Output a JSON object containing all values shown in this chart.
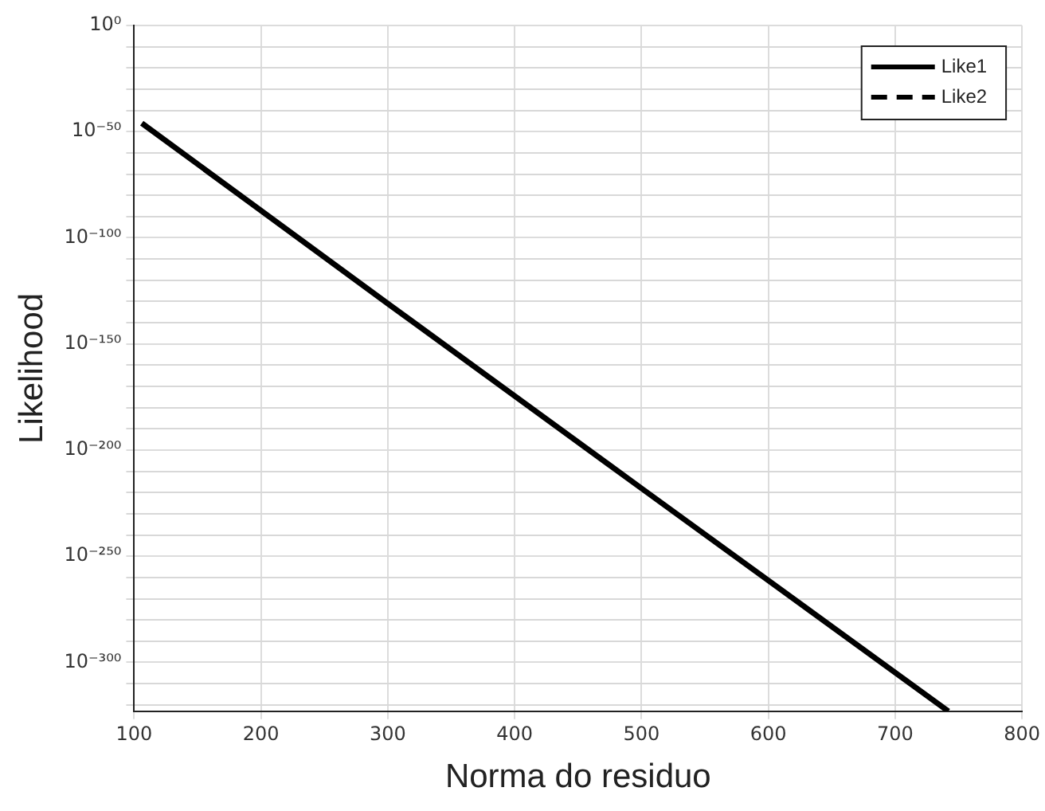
{
  "chart_data": {
    "type": "line",
    "xlabel": "Norma do residuo",
    "ylabel": "Likelihood",
    "x": [
      106,
      300,
      500,
      742
    ],
    "series": [
      {
        "name": "Like1",
        "color": "#000000",
        "line_style": "solid",
        "values": [
          1e-46,
          1e-131,
          1e-218,
          1e-323
        ]
      },
      {
        "name": "Like2",
        "color": "#000000",
        "line_style": "dashed",
        "values": [
          null,
          null,
          null,
          null
        ]
      }
    ],
    "log": "y",
    "xlim": [
      100,
      800
    ],
    "xticks": [
      100,
      200,
      300,
      400,
      500,
      600,
      700,
      800
    ],
    "ylim": [
      1e-323,
      1
    ],
    "yticks": [
      {
        "value": 1e-320,
        "label": null
      },
      {
        "value": 1e-310,
        "label": null
      },
      {
        "value": 1e-300,
        "label": "10⁻³⁰⁰"
      },
      {
        "value": 1e-290,
        "label": null
      },
      {
        "value": 1e-280,
        "label": null
      },
      {
        "value": 1e-270,
        "label": null
      },
      {
        "value": 1e-260,
        "label": null
      },
      {
        "value": 1e-250,
        "label": "10⁻²⁵⁰"
      },
      {
        "value": 1e-240,
        "label": null
      },
      {
        "value": 1e-230,
        "label": null
      },
      {
        "value": 1e-220,
        "label": null
      },
      {
        "value": 1e-210,
        "label": null
      },
      {
        "value": 1e-200,
        "label": "10⁻²⁰⁰"
      },
      {
        "value": 1e-190,
        "label": null
      },
      {
        "value": 1e-180,
        "label": null
      },
      {
        "value": 1e-170,
        "label": null
      },
      {
        "value": 1e-160,
        "label": null
      },
      {
        "value": 1e-150,
        "label": "10⁻¹⁵⁰"
      },
      {
        "value": 1e-140,
        "label": null
      },
      {
        "value": 1e-130,
        "label": null
      },
      {
        "value": 1e-120,
        "label": null
      },
      {
        "value": 1e-110,
        "label": null
      },
      {
        "value": 1e-100,
        "label": "10⁻¹⁰⁰"
      },
      {
        "value": 1e-90,
        "label": null
      },
      {
        "value": 1e-80,
        "label": null
      },
      {
        "value": 1e-70,
        "label": null
      },
      {
        "value": 1e-60,
        "label": null
      },
      {
        "value": 1e-50,
        "label": "10⁻⁵⁰"
      },
      {
        "value": 1e-40,
        "label": null
      },
      {
        "value": 1e-30,
        "label": null
      },
      {
        "value": 1e-20,
        "label": null
      },
      {
        "value": 1e-10,
        "label": null
      },
      {
        "value": 1,
        "label": "10⁰"
      }
    ],
    "grid": true,
    "legend": "top right",
    "marker": "none"
  }
}
